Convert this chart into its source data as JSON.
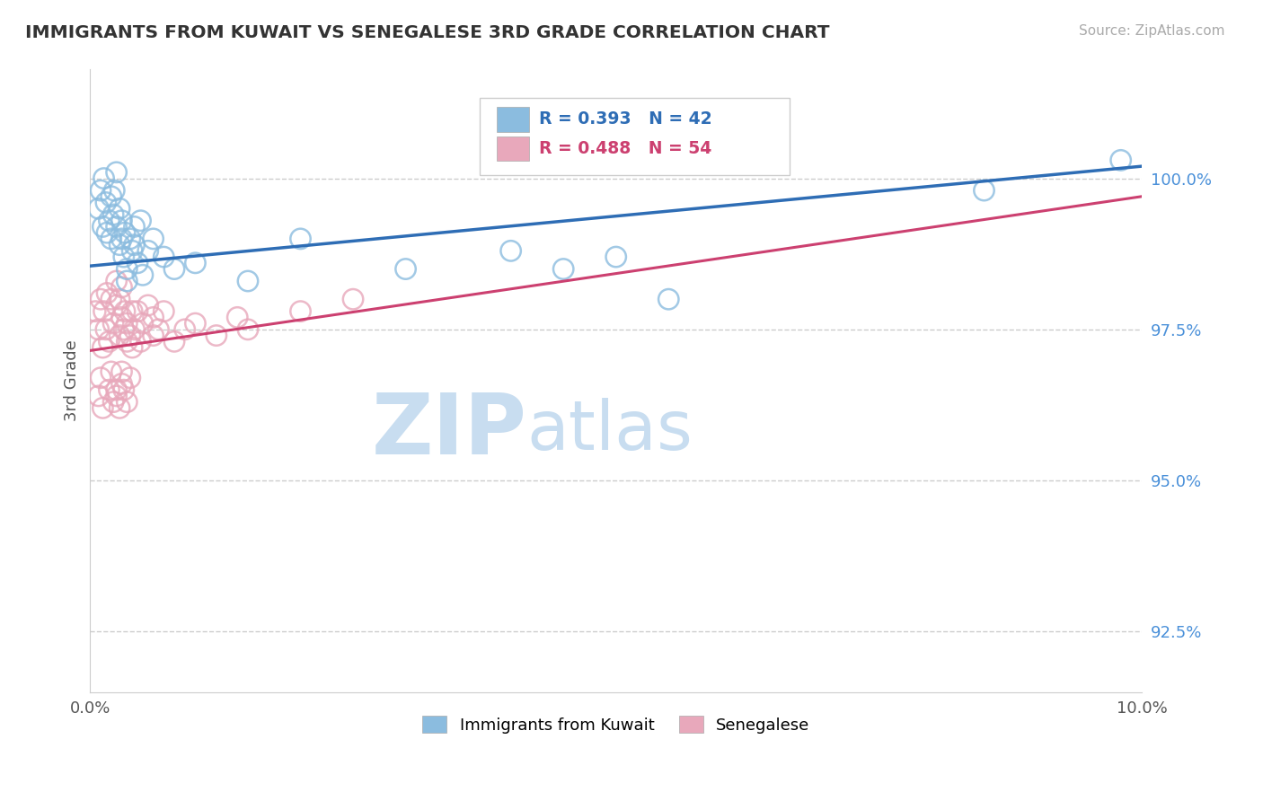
{
  "title": "IMMIGRANTS FROM KUWAIT VS SENEGALESE 3RD GRADE CORRELATION CHART",
  "source_text": "Source: ZipAtlas.com",
  "ylabel": "3rd Grade",
  "xlim": [
    0.0,
    10.0
  ],
  "ylim": [
    91.5,
    101.8
  ],
  "yticks": [
    92.5,
    95.0,
    97.5,
    100.0
  ],
  "yticklabels": [
    "92.5%",
    "95.0%",
    "97.5%",
    "100.0%"
  ],
  "legend_label1": "Immigrants from Kuwait",
  "legend_label2": "Senegalese",
  "blue_color": "#8bbcdf",
  "pink_color": "#e8a8bb",
  "blue_line_color": "#2e6db5",
  "pink_line_color": "#cc4070",
  "blue_scatter_x": [
    0.08,
    0.1,
    0.12,
    0.13,
    0.15,
    0.16,
    0.18,
    0.2,
    0.2,
    0.22,
    0.23,
    0.25,
    0.25,
    0.28,
    0.28,
    0.3,
    0.3,
    0.32,
    0.33,
    0.35,
    0.38,
    0.4,
    0.42,
    0.45,
    0.48,
    0.5,
    0.55,
    0.6,
    0.7,
    0.8,
    1.0,
    1.5,
    2.0,
    3.0,
    4.0,
    4.5,
    5.0,
    5.5,
    8.5,
    9.8,
    0.35,
    0.42
  ],
  "blue_scatter_y": [
    99.5,
    99.8,
    99.2,
    100.0,
    99.6,
    99.1,
    99.3,
    99.0,
    99.7,
    99.4,
    99.8,
    99.2,
    100.1,
    99.5,
    98.9,
    99.0,
    99.3,
    98.7,
    99.1,
    98.5,
    99.0,
    98.8,
    99.2,
    98.6,
    99.3,
    98.4,
    98.8,
    99.0,
    98.7,
    98.5,
    98.6,
    98.3,
    99.0,
    98.5,
    98.8,
    98.5,
    98.7,
    98.0,
    99.8,
    100.3,
    98.3,
    98.9
  ],
  "pink_scatter_x": [
    0.05,
    0.08,
    0.1,
    0.12,
    0.13,
    0.15,
    0.16,
    0.18,
    0.2,
    0.22,
    0.25,
    0.25,
    0.28,
    0.28,
    0.3,
    0.3,
    0.32,
    0.33,
    0.35,
    0.35,
    0.38,
    0.4,
    0.4,
    0.42,
    0.45,
    0.48,
    0.5,
    0.55,
    0.6,
    0.6,
    0.65,
    0.7,
    0.8,
    0.9,
    1.0,
    1.2,
    1.4,
    1.5,
    2.0,
    2.5,
    0.2,
    0.25,
    0.28,
    0.3,
    0.32,
    0.35,
    0.38,
    0.25,
    0.3,
    0.22,
    0.18,
    0.12,
    0.1,
    0.08
  ],
  "pink_scatter_y": [
    97.8,
    97.5,
    98.0,
    97.2,
    97.8,
    97.5,
    98.1,
    97.3,
    98.0,
    97.6,
    97.9,
    98.3,
    97.4,
    98.0,
    97.7,
    98.2,
    97.5,
    97.8,
    97.3,
    97.6,
    97.4,
    97.8,
    97.2,
    97.5,
    97.8,
    97.3,
    97.6,
    97.9,
    97.4,
    97.7,
    97.5,
    97.8,
    97.3,
    97.5,
    97.6,
    97.4,
    97.7,
    97.5,
    97.8,
    98.0,
    96.8,
    96.5,
    96.2,
    96.8,
    96.5,
    96.3,
    96.7,
    96.4,
    96.6,
    96.3,
    96.5,
    96.2,
    96.7,
    96.4
  ],
  "background_color": "#ffffff",
  "grid_color": "#cccccc",
  "title_color": "#333333",
  "axis_label_color": "#555555",
  "tick_color_y": "#4a90d9",
  "watermark_zip": "ZIP",
  "watermark_atlas": "atlas",
  "watermark_color_zip": "#c8ddf0",
  "watermark_color_atlas": "#c8ddf0",
  "blue_line_x0": 0.0,
  "blue_line_x1": 10.0,
  "blue_line_y0": 98.55,
  "blue_line_y1": 100.2,
  "pink_line_x0": 0.0,
  "pink_line_x1": 10.0,
  "pink_line_y0": 97.15,
  "pink_line_y1": 99.7
}
